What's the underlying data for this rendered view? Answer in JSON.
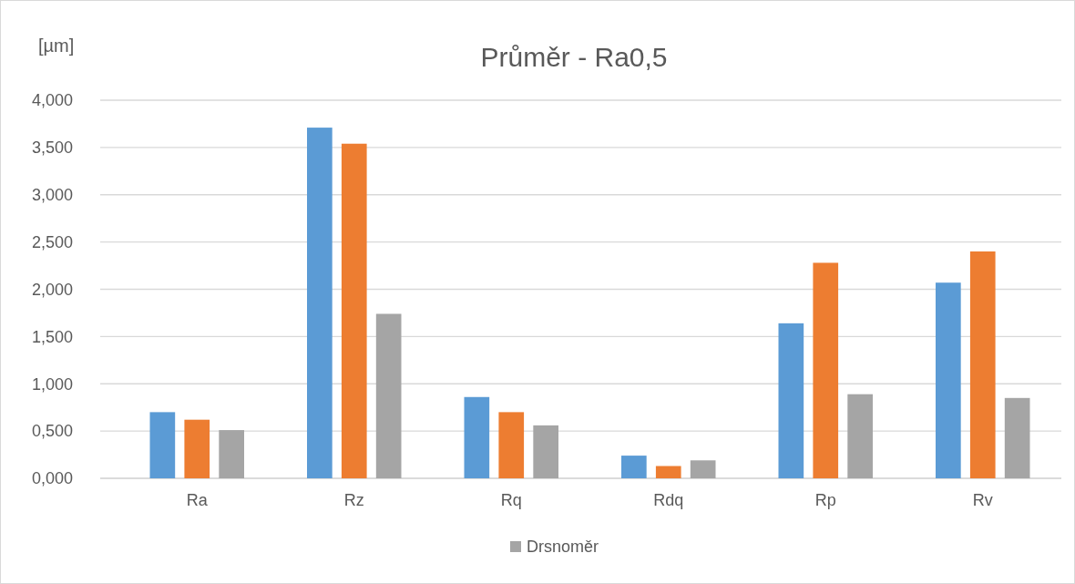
{
  "chart_data": {
    "type": "bar",
    "title": "Průměr - Ra0,5",
    "ylabel": "[µm]",
    "categories": [
      "Ra",
      "Rz",
      "Rq",
      "Rdq",
      "Rp",
      "Rv"
    ],
    "series": [
      {
        "color": "#5b9bd5",
        "values": [
          0.7,
          3.71,
          0.86,
          0.24,
          1.64,
          2.07
        ]
      },
      {
        "color": "#ed7d31",
        "values": [
          0.62,
          3.54,
          0.7,
          0.13,
          2.28,
          2.4
        ]
      },
      {
        "name": "Drsnoměr",
        "color": "#a5a5a5",
        "values": [
          0.51,
          1.74,
          0.56,
          0.19,
          0.89,
          0.85
        ]
      }
    ],
    "ylim": [
      0,
      4
    ],
    "yticks": [
      {
        "value": 0,
        "label": "0,000"
      },
      {
        "value": 0.5,
        "label": "0,500"
      },
      {
        "value": 1,
        "label": "1,000"
      },
      {
        "value": 1.5,
        "label": "1,500"
      },
      {
        "value": 2,
        "label": "2,000"
      },
      {
        "value": 2.5,
        "label": "2,500"
      },
      {
        "value": 3,
        "label": "3,000"
      },
      {
        "value": 3.5,
        "label": "3,500"
      },
      {
        "value": 4,
        "label": "4,000"
      }
    ],
    "grid": "y",
    "legend": "bottom"
  }
}
